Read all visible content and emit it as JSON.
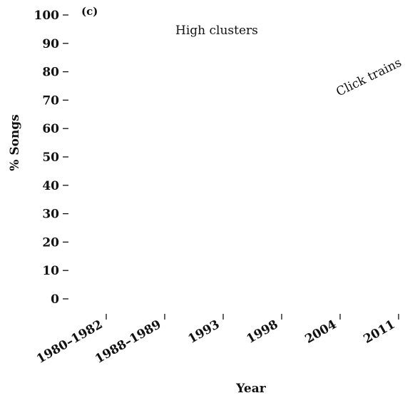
{
  "chart_data": {
    "type": "line",
    "panel_label": "(c)",
    "title": "",
    "xlabel": "Year",
    "ylabel": "% Songs",
    "x_categories": [
      "1980–1982",
      "1988–1989",
      "1993",
      "1998",
      "2004",
      "2011"
    ],
    "y_ticks": [
      100,
      90,
      80,
      70,
      60,
      50,
      40,
      30,
      20,
      10,
      0
    ],
    "ylim": [
      0,
      100
    ],
    "grid": false,
    "series": [],
    "annotations": [
      {
        "text": "High clusters"
      },
      {
        "text": "Click trains"
      }
    ]
  }
}
